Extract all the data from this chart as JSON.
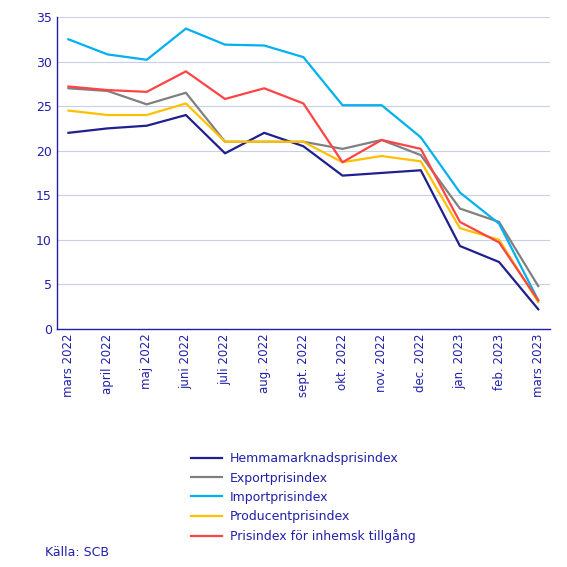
{
  "x_labels": [
    "mars 2022",
    "april 2022",
    "maj 2022",
    "juni 2022",
    "juli 2022",
    "aug. 2022",
    "sept. 2022",
    "okt. 2022",
    "nov. 2022",
    "dec. 2022",
    "jan. 2023",
    "feb. 2023",
    "mars 2023"
  ],
  "series": {
    "Hemmamarknadsprisindex": {
      "values": [
        22.0,
        22.5,
        22.8,
        24.0,
        19.7,
        22.0,
        20.5,
        17.2,
        17.5,
        17.8,
        9.3,
        7.5,
        2.2
      ],
      "color": "#1F1F8F",
      "linewidth": 1.6
    },
    "Exportprisindex": {
      "values": [
        27.0,
        26.7,
        25.2,
        26.5,
        21.0,
        21.0,
        21.0,
        20.2,
        21.2,
        19.5,
        13.5,
        12.0,
        4.8
      ],
      "color": "#808080",
      "linewidth": 1.6
    },
    "Importprisindex": {
      "values": [
        32.5,
        30.8,
        30.2,
        33.7,
        31.9,
        31.8,
        30.5,
        25.1,
        25.1,
        21.5,
        15.3,
        11.8,
        3.2
      ],
      "color": "#00B0F0",
      "linewidth": 1.6
    },
    "Producentprisindex": {
      "values": [
        24.5,
        24.0,
        24.0,
        25.3,
        21.0,
        21.0,
        21.0,
        18.7,
        19.4,
        18.8,
        11.3,
        10.0,
        3.0
      ],
      "color": "#FFC000",
      "linewidth": 1.6
    },
    "Prisindex för inhemsk tillgång": {
      "values": [
        27.2,
        26.8,
        26.6,
        28.9,
        25.8,
        27.0,
        25.3,
        18.7,
        21.2,
        20.2,
        12.0,
        9.7,
        3.2
      ],
      "color": "#FF4444",
      "linewidth": 1.6
    }
  },
  "ylim": [
    0,
    35
  ],
  "yticks": [
    0,
    5,
    10,
    15,
    20,
    25,
    30,
    35
  ],
  "source_text": "Källa: SCB",
  "background_color": "#FFFFFF",
  "grid_color": "#C8D0E8",
  "axis_color": "#2020AA",
  "tick_color": "#2020AA",
  "legend_order": [
    "Hemmamarknadsprisindex",
    "Exportprisindex",
    "Importprisindex",
    "Producentprisindex",
    "Prisindex för inhemsk tillgång"
  ],
  "legend_text_color": "#2020AA"
}
